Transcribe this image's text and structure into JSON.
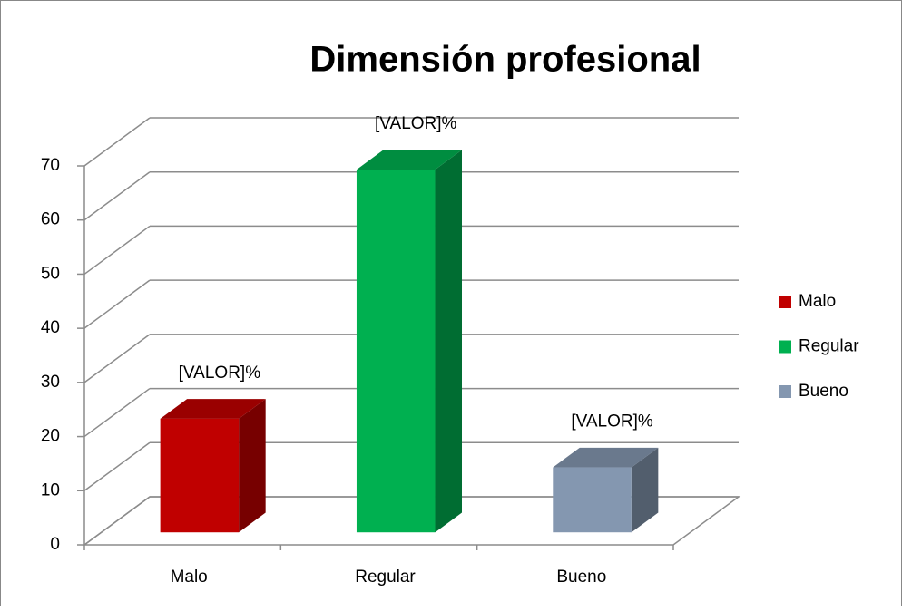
{
  "chart_data": {
    "type": "bar3d",
    "title": "Dimensión  profesional",
    "categories": [
      "Malo",
      "Regular",
      "Bueno"
    ],
    "values": [
      21,
      67,
      12
    ],
    "value_labels": [
      "[VALOR]%",
      "[VALOR]%",
      "[VALOR]%"
    ],
    "colors": [
      "#c00000",
      "#00b050",
      "#8497b0"
    ],
    "ylim": [
      0,
      70
    ],
    "yticks": [
      0,
      10,
      20,
      30,
      40,
      50,
      60,
      70
    ],
    "grid": true,
    "legend": "right"
  }
}
